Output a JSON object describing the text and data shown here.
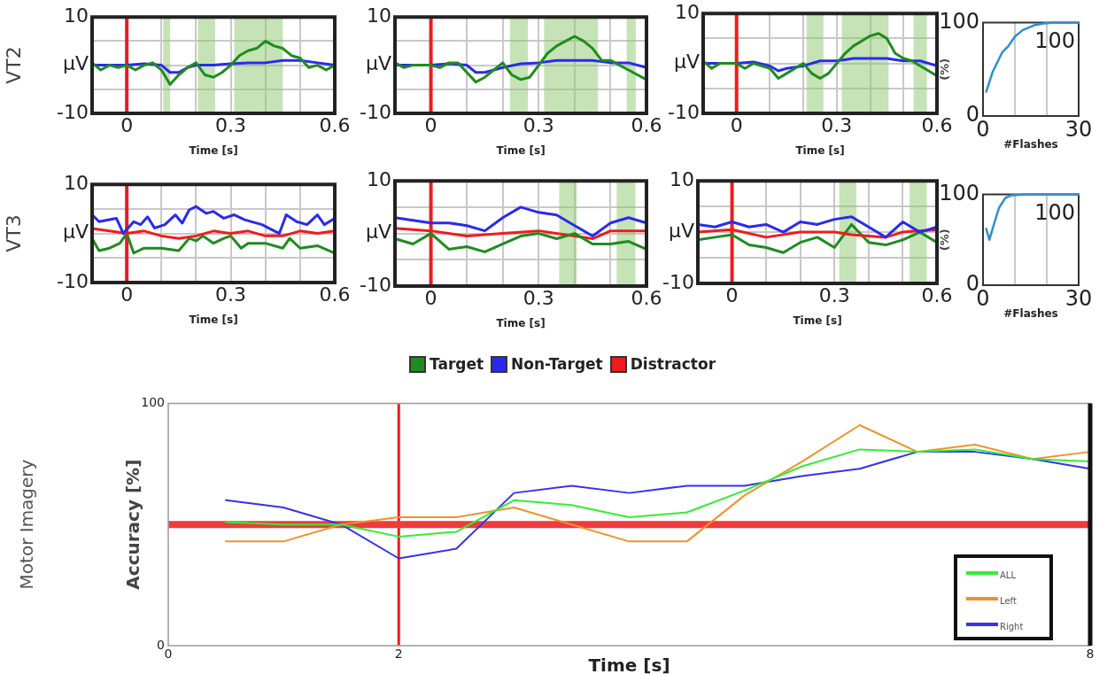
{
  "chart_data": [
    {
      "type": "line",
      "ylabel": "VT2",
      "xlabel": "Time [s]",
      "xlim": [
        -0.1,
        0.6
      ],
      "ylim": [
        -10,
        10
      ],
      "xticks": [
        0,
        {
          "value": 0.1,
          "label": null
        },
        {
          "value": 0.2,
          "label": null
        },
        0.3,
        {
          "value": 0.4,
          "label": null
        },
        {
          "value": 0.5,
          "label": null
        },
        0.6
      ],
      "yticks": [
        -10,
        {
          "value": -5,
          "label": null
        },
        {
          "value": 0,
          "label": "μV"
        },
        {
          "value": 5,
          "label": null
        },
        10
      ],
      "grid": true,
      "bands": [
        {
          "axis": "x",
          "from": 0.105,
          "to": 0.125,
          "color": "#8cc86e"
        },
        {
          "axis": "x",
          "from": 0.205,
          "to": 0.255,
          "color": "#8cc86e"
        },
        {
          "axis": "x",
          "from": 0.31,
          "to": 0.45,
          "color": "#8cc86e"
        }
      ],
      "ref_lines": [
        {
          "axis": "x",
          "value": 0,
          "color": "#ee1c1c"
        }
      ],
      "series": [
        {
          "color": "#1e8c1e",
          "x": [
            -0.1,
            -0.075,
            -0.05,
            -0.025,
            0,
            0.025,
            0.05,
            0.075,
            0.1,
            0.125,
            0.15,
            0.175,
            0.2,
            0.225,
            0.25,
            0.275,
            0.3,
            0.325,
            0.35,
            0.375,
            0.4,
            0.425,
            0.45,
            0.475,
            0.5,
            0.525,
            0.55,
            0.575,
            0.6
          ],
          "values": [
            0.5,
            -1,
            0,
            -0.5,
            0,
            -1,
            0,
            0.5,
            -1,
            -4,
            -2,
            -0.5,
            0.5,
            -2,
            -2.5,
            -1.5,
            0,
            2,
            3,
            3.5,
            5,
            4,
            3.5,
            2,
            1.5,
            -0.5,
            0,
            -1,
            0
          ]
        },
        {
          "color": "#2a2aee",
          "x": [
            -0.1,
            0,
            0.05,
            0.1,
            0.125,
            0.15,
            0.175,
            0.2,
            0.25,
            0.3,
            0.35,
            0.4,
            0.45,
            0.5,
            0.55,
            0.6
          ],
          "values": [
            0,
            0,
            0.3,
            0,
            -1.5,
            -1.5,
            -0.5,
            0,
            0,
            0.3,
            0.5,
            0.5,
            1,
            1,
            0.5,
            0
          ]
        }
      ]
    },
    {
      "type": "line",
      "xlabel": "Time [s]",
      "xlim": [
        -0.1,
        0.6
      ],
      "ylim": [
        -10,
        10
      ],
      "xticks": [
        0,
        {
          "value": 0.1,
          "label": null
        },
        {
          "value": 0.2,
          "label": null
        },
        0.3,
        {
          "value": 0.4,
          "label": null
        },
        {
          "value": 0.5,
          "label": null
        },
        0.6
      ],
      "yticks": [
        -10,
        {
          "value": -5,
          "label": null
        },
        {
          "value": 0,
          "label": "μV"
        },
        {
          "value": 5,
          "label": null
        },
        10
      ],
      "grid": true,
      "bands": [
        {
          "axis": "x",
          "from": 0.22,
          "to": 0.27,
          "color": "#8cc86e"
        },
        {
          "axis": "x",
          "from": 0.315,
          "to": 0.465,
          "color": "#8cc86e"
        },
        {
          "axis": "x",
          "from": 0.545,
          "to": 0.57,
          "color": "#8cc86e"
        }
      ],
      "ref_lines": [
        {
          "axis": "x",
          "value": 0,
          "color": "#ee1c1c"
        }
      ],
      "series": [
        {
          "color": "#1e8c1e",
          "x": [
            -0.1,
            -0.075,
            -0.05,
            -0.025,
            0,
            0.025,
            0.05,
            0.075,
            0.1,
            0.125,
            0.15,
            0.175,
            0.2,
            0.225,
            0.25,
            0.275,
            0.3,
            0.325,
            0.35,
            0.375,
            0.4,
            0.425,
            0.45,
            0.475,
            0.5,
            0.525,
            0.55,
            0.575,
            0.6
          ],
          "values": [
            0.5,
            -0.5,
            0,
            0,
            0,
            -0.5,
            0.5,
            0.5,
            -1.5,
            -3.5,
            -2.5,
            -1,
            0.5,
            -2,
            -3,
            -2.5,
            0,
            2.5,
            4,
            5,
            6,
            5,
            3.5,
            1,
            1,
            0,
            -1,
            -2,
            -3
          ]
        },
        {
          "color": "#2a2aee",
          "x": [
            -0.1,
            0,
            0.05,
            0.1,
            0.125,
            0.15,
            0.2,
            0.25,
            0.3,
            0.35,
            0.4,
            0.45,
            0.5,
            0.55,
            0.6
          ],
          "values": [
            0,
            0,
            0.3,
            0,
            -1.5,
            -1.5,
            -0.5,
            0.3,
            0.5,
            1,
            1,
            1,
            0.5,
            0.5,
            -0.5
          ]
        }
      ]
    },
    {
      "type": "line",
      "xlabel": "Time [s]",
      "xlim": [
        -0.1,
        0.6
      ],
      "ylim": [
        -10,
        10
      ],
      "xticks": [
        0,
        {
          "value": 0.1,
          "label": null
        },
        {
          "value": 0.2,
          "label": null
        },
        0.3,
        {
          "value": 0.4,
          "label": null
        },
        {
          "value": 0.5,
          "label": null
        },
        0.6
      ],
      "yticks": [
        -10,
        {
          "value": -5,
          "label": null
        },
        {
          "value": 0,
          "label": "μV"
        },
        {
          "value": 5,
          "label": null
        },
        10
      ],
      "grid": true,
      "bands": [
        {
          "axis": "x",
          "from": 0.21,
          "to": 0.26,
          "color": "#8cc86e"
        },
        {
          "axis": "x",
          "from": 0.315,
          "to": 0.455,
          "color": "#8cc86e"
        },
        {
          "axis": "x",
          "from": 0.53,
          "to": 0.57,
          "color": "#8cc86e"
        }
      ],
      "ref_lines": [
        {
          "axis": "x",
          "value": 0,
          "color": "#ee1c1c"
        }
      ],
      "series": [
        {
          "color": "#1e8c1e",
          "x": [
            -0.1,
            -0.075,
            -0.05,
            0,
            0.025,
            0.05,
            0.1,
            0.125,
            0.15,
            0.175,
            0.2,
            0.225,
            0.25,
            0.275,
            0.3,
            0.325,
            0.35,
            0.375,
            0.4,
            0.425,
            0.45,
            0.475,
            0.5,
            0.525,
            0.55,
            0.575,
            0.6
          ],
          "values": [
            0.5,
            -1,
            0,
            0,
            -1,
            0,
            -1,
            -3,
            -2,
            -1,
            0,
            -2,
            -3,
            -2,
            0,
            2,
            3.5,
            4.5,
            5.5,
            6,
            5,
            2,
            1,
            0.5,
            -0.5,
            -1.5,
            -2.5
          ]
        },
        {
          "color": "#2a2aee",
          "x": [
            -0.1,
            0,
            0.05,
            0.1,
            0.125,
            0.15,
            0.2,
            0.25,
            0.3,
            0.35,
            0.4,
            0.45,
            0.5,
            0.55,
            0.6
          ],
          "values": [
            0,
            0,
            0.3,
            -0.5,
            -1.5,
            -1,
            -0.5,
            0.5,
            0.5,
            1,
            1,
            1,
            0.5,
            0.5,
            -0.5
          ]
        }
      ]
    },
    {
      "type": "line",
      "xlabel": "#Flashes",
      "ylabel": "(%)",
      "xlim": [
        0,
        30
      ],
      "ylim": [
        0,
        100
      ],
      "xticks": [
        0,
        {
          "value": 10,
          "label": null
        },
        {
          "value": 20,
          "label": null
        },
        30
      ],
      "yticks": [
        0,
        100
      ],
      "grid": "x",
      "annotations": [
        "100"
      ],
      "series": [
        {
          "color": "#2f8fd0",
          "x": [
            1,
            3,
            6,
            8,
            10,
            12.5,
            16,
            19,
            22,
            30
          ],
          "values": [
            26,
            47,
            68,
            75,
            85,
            92,
            97,
            99,
            100,
            100
          ]
        }
      ]
    },
    {
      "type": "line",
      "ylabel": "VT3",
      "xlabel": "Time [s]",
      "xlim": [
        -0.1,
        0.6
      ],
      "ylim": [
        -10,
        10
      ],
      "xticks": [
        0,
        {
          "value": 0.1,
          "label": null
        },
        {
          "value": 0.2,
          "label": null
        },
        0.3,
        {
          "value": 0.4,
          "label": null
        },
        {
          "value": 0.5,
          "label": null
        },
        0.6
      ],
      "yticks": [
        -10,
        {
          "value": -5,
          "label": null
        },
        {
          "value": 0,
          "label": "μV"
        },
        {
          "value": 5,
          "label": null
        },
        10
      ],
      "grid": true,
      "ref_lines": [
        {
          "axis": "x",
          "value": 0,
          "color": "#ee1c1c"
        }
      ],
      "series": [
        {
          "color": "#2a2aee",
          "x": [
            -0.1,
            -0.08,
            -0.03,
            -0.01,
            0.02,
            0.04,
            0.06,
            0.08,
            0.11,
            0.14,
            0.16,
            0.18,
            0.2,
            0.23,
            0.25,
            0.28,
            0.31,
            0.34,
            0.39,
            0.44,
            0.46,
            0.49,
            0.52,
            0.55,
            0.57,
            0.6
          ],
          "values": [
            3.8,
            2.4,
            3.1,
            0,
            2.4,
            1.8,
            3.4,
            1.1,
            1.8,
            3.8,
            2.1,
            4.8,
            5.5,
            4.1,
            4.5,
            3.1,
            3.8,
            2.8,
            1.8,
            0,
            3.8,
            2.4,
            1.8,
            3.8,
            1.8,
            3.1
          ]
        },
        {
          "color": "#ee1c1c",
          "x": [
            -0.1,
            0,
            0.05,
            0.1,
            0.15,
            0.2,
            0.25,
            0.3,
            0.35,
            0.4,
            0.45,
            0.5,
            0.55,
            0.6
          ],
          "values": [
            1,
            0,
            0.5,
            -0.5,
            -1,
            -0.5,
            0.5,
            0,
            0.5,
            -0.5,
            -0.5,
            0.5,
            0,
            0.5
          ]
        },
        {
          "color": "#1e8c1e",
          "x": [
            -0.1,
            -0.08,
            -0.05,
            -0.02,
            0,
            0.02,
            0.05,
            0.1,
            0.15,
            0.18,
            0.2,
            0.22,
            0.25,
            0.28,
            0.3,
            0.33,
            0.35,
            0.4,
            0.45,
            0.47,
            0.5,
            0.55,
            0.6
          ],
          "values": [
            -1,
            -3.5,
            -3,
            -2,
            0,
            -4,
            -3,
            -3,
            -3.5,
            -1,
            -1.5,
            -0.5,
            -2,
            -1,
            -0.5,
            -3,
            -2,
            -2,
            -3,
            -1,
            -3,
            -2.5,
            -4
          ]
        }
      ]
    },
    {
      "type": "line",
      "xlabel": "Time [s]",
      "xlim": [
        -0.1,
        0.6
      ],
      "ylim": [
        -10,
        10
      ],
      "xticks": [
        0,
        {
          "value": 0.1,
          "label": null
        },
        {
          "value": 0.2,
          "label": null
        },
        0.3,
        {
          "value": 0.4,
          "label": null
        },
        {
          "value": 0.5,
          "label": null
        },
        0.6
      ],
      "yticks": [
        -10,
        {
          "value": -5,
          "label": null
        },
        {
          "value": 0,
          "label": "μV"
        },
        {
          "value": 5,
          "label": null
        },
        10
      ],
      "grid": true,
      "legend": "bottom",
      "bands": [
        {
          "axis": "x",
          "from": 0.357,
          "to": 0.406,
          "color": "#8cc86e"
        },
        {
          "axis": "x",
          "from": 0.517,
          "to": 0.569,
          "color": "#8cc86e"
        }
      ],
      "ref_lines": [
        {
          "axis": "x",
          "value": 0,
          "color": "#ee1c1c"
        }
      ],
      "series": [
        {
          "name": "Target",
          "color": "#1e8c1e",
          "x": [
            -0.1,
            -0.05,
            0,
            0.05,
            0.1,
            0.15,
            0.2,
            0.25,
            0.3,
            0.35,
            0.4,
            0.45,
            0.5,
            0.55,
            0.6
          ],
          "values": [
            -1,
            -2,
            0,
            -3,
            -2.5,
            -3.5,
            -2,
            -0.5,
            0,
            -1,
            0,
            -2,
            -2,
            -1.5,
            -3
          ]
        },
        {
          "name": "Non-Target",
          "color": "#2a2aee",
          "x": [
            -0.1,
            0,
            0.05,
            0.1,
            0.15,
            0.2,
            0.25,
            0.3,
            0.35,
            0.4,
            0.45,
            0.5,
            0.55,
            0.6
          ],
          "values": [
            3,
            2,
            2,
            1.5,
            0.5,
            3,
            5,
            4,
            3.5,
            1.5,
            -0.5,
            2,
            3,
            2
          ]
        },
        {
          "name": "Distractor",
          "color": "#ee1c1c",
          "x": [
            -0.1,
            0,
            0.1,
            0.2,
            0.3,
            0.4,
            0.45,
            0.5,
            0.6
          ],
          "values": [
            1,
            0.5,
            -0.5,
            0,
            0.5,
            -0.5,
            -1,
            0.5,
            0.5
          ]
        }
      ]
    },
    {
      "type": "line",
      "xlabel": "Time [s]",
      "xlim": [
        -0.1,
        0.6
      ],
      "ylim": [
        -10,
        10
      ],
      "xticks": [
        0,
        {
          "value": 0.1,
          "label": null
        },
        {
          "value": 0.2,
          "label": null
        },
        0.3,
        {
          "value": 0.4,
          "label": null
        },
        {
          "value": 0.5,
          "label": null
        },
        0.6
      ],
      "yticks": [
        -10,
        {
          "value": -5,
          "label": null
        },
        {
          "value": 0,
          "label": "μV"
        },
        {
          "value": 5,
          "label": null
        },
        10
      ],
      "grid": true,
      "bands": [
        {
          "axis": "x",
          "from": 0.314,
          "to": 0.364,
          "color": "#8cc86e"
        },
        {
          "axis": "x",
          "from": 0.52,
          "to": 0.57,
          "color": "#8cc86e"
        }
      ],
      "ref_lines": [
        {
          "axis": "x",
          "value": 0,
          "color": "#ee1c1c"
        }
      ],
      "series": [
        {
          "color": "#2a2aee",
          "x": [
            -0.1,
            -0.05,
            0,
            0.05,
            0.1,
            0.15,
            0.2,
            0.25,
            0.3,
            0.35,
            0.4,
            0.45,
            0.5,
            0.55,
            0.6
          ],
          "values": [
            1.5,
            1,
            2,
            1,
            1.5,
            0,
            2,
            1.5,
            2.5,
            3,
            1,
            -1,
            2,
            0,
            1
          ]
        },
        {
          "color": "#ee1c1c",
          "x": [
            -0.1,
            0,
            0.1,
            0.2,
            0.3,
            0.35,
            0.45,
            0.5,
            0.6
          ],
          "values": [
            0,
            0.5,
            -1,
            0,
            0,
            -0.5,
            -1,
            0,
            0.5
          ]
        },
        {
          "color": "#1e8c1e",
          "x": [
            -0.1,
            -0.05,
            0,
            0.05,
            0.1,
            0.15,
            0.2,
            0.25,
            0.3,
            0.35,
            0.4,
            0.45,
            0.5,
            0.55,
            0.6
          ],
          "values": [
            -1.5,
            -1,
            -0.5,
            -2.5,
            -3,
            -4,
            -2,
            -1,
            -3,
            1.5,
            -2,
            -2.5,
            -1.5,
            0,
            -2
          ]
        }
      ]
    },
    {
      "type": "line",
      "xlabel": "#Flashes",
      "ylabel": "(%)",
      "xlim": [
        0,
        30
      ],
      "ylim": [
        0,
        100
      ],
      "xticks": [
        0,
        {
          "value": 10,
          "label": null
        },
        {
          "value": 20,
          "label": null
        },
        30
      ],
      "yticks": [
        0,
        100
      ],
      "grid": "x",
      "annotations": [
        "100"
      ],
      "series": [
        {
          "color": "#2f8fd0",
          "x": [
            1,
            2,
            3.5,
            5,
            7,
            9,
            14,
            30
          ],
          "values": [
            62,
            50,
            68,
            85,
            96,
            99,
            100,
            100
          ]
        }
      ]
    },
    {
      "type": "line",
      "xlabel": "Time [s]",
      "ylabel": "Accuracy [%]",
      "xlim": [
        0,
        8
      ],
      "ylim": [
        0,
        100
      ],
      "xticks": [
        0,
        2,
        8
      ],
      "yticks": [
        0,
        100
      ],
      "legend": "bottom right",
      "annotations": [
        "Motor Imagery"
      ],
      "ref_lines": [
        {
          "axis": "x",
          "value": 2,
          "color": "#ee1c1c"
        },
        {
          "axis": "y",
          "value": 50,
          "color": "#ee3b3b"
        }
      ],
      "series": [
        {
          "name": "ALL",
          "color": "#33ee33",
          "x": [
            0.5,
            1,
            1.5,
            2,
            2.5,
            3,
            3.5,
            4,
            4.5,
            5,
            5.5,
            6,
            6.5,
            7,
            7.5,
            8
          ],
          "values": [
            51,
            50,
            50,
            45,
            47,
            60,
            58,
            53,
            55,
            64,
            74,
            81,
            80,
            81,
            77,
            76
          ]
        },
        {
          "name": "Left",
          "color": "#f0922b",
          "x": [
            0.5,
            1,
            1.5,
            2,
            2.5,
            3,
            3.5,
            4,
            4.5,
            5,
            5.5,
            6,
            6.5,
            7,
            7.5,
            8
          ],
          "values": [
            43,
            43,
            50,
            53,
            53,
            57,
            50,
            43,
            43,
            62,
            76,
            91,
            80,
            83,
            77,
            80
          ]
        },
        {
          "name": "Right",
          "color": "#3333ee",
          "x": [
            0.5,
            1,
            1.5,
            2,
            2.5,
            3,
            3.5,
            4,
            4.5,
            5,
            5.5,
            6,
            6.5,
            7,
            7.5,
            8
          ],
          "values": [
            60,
            57,
            50,
            36,
            40,
            63,
            66,
            63,
            66,
            66,
            70,
            73,
            80,
            80,
            77,
            73
          ]
        }
      ]
    }
  ]
}
